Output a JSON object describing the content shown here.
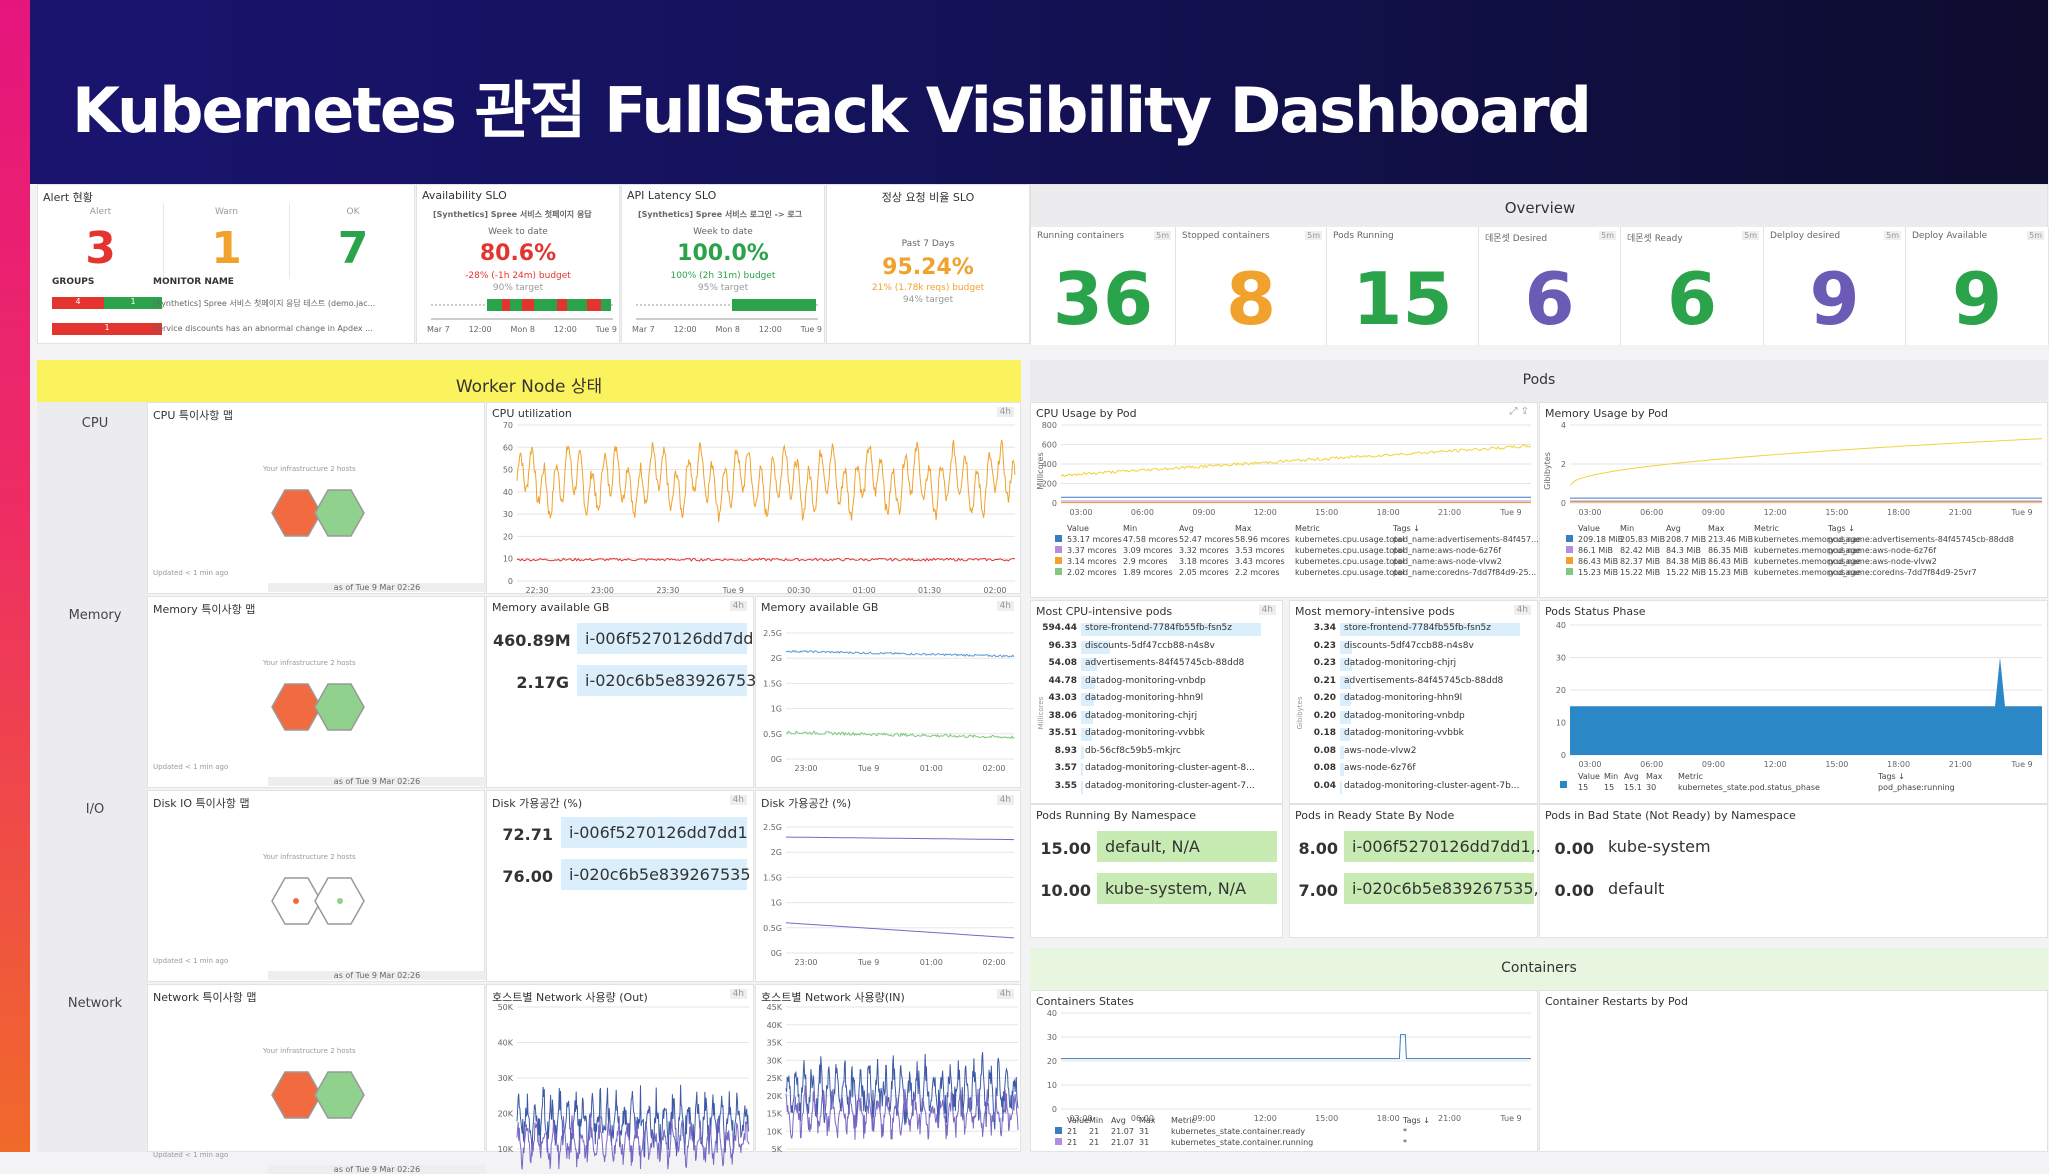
{
  "title": "Kubernetes 관점 FullStack Visibility Dashboard",
  "alert": {
    "title": "Alert 현황",
    "alert_label": "Alert",
    "warn_label": "Warn",
    "ok_label": "OK",
    "alert": "3",
    "warn": "1",
    "ok": "7",
    "groups_label": "GROUPS",
    "monitor_label": "MONITOR NAME",
    "g1a": "4",
    "g1b": "1",
    "g2": "1",
    "m1": "[Synthetics] Spree 서비스 첫페이지 응답 테스트 (demo.jac...",
    "m2": "Service discounts has an abnormal change in Apdex ..."
  },
  "slo1": {
    "title": "Availability SLO",
    "name": "[Synthetics] Spree 서비스 첫페이지 응답",
    "period": "Week to date",
    "value": "80.6%",
    "budget": "-28% (-1h 24m) budget",
    "target": "90% target",
    "ticks": [
      "Mar 7",
      "12:00",
      "Mon 8",
      "12:00",
      "Tue 9"
    ]
  },
  "slo2": {
    "title": "API Latency SLO",
    "name": "[Synthetics] Spree 서비스 로그인 -> 로그",
    "period": "Week to date",
    "value": "100.0%",
    "budget": "100% (2h 31m) budget",
    "target": "95% target",
    "ticks": [
      "Mar 7",
      "12:00",
      "Mon 8",
      "12:00",
      "Tue 9"
    ]
  },
  "slo3": {
    "title": "정상 요청 비율 SLO",
    "period": "Past 7 Days",
    "value": "95.24%",
    "budget": "21% (1.78k reqs) budget",
    "target": "94% target"
  },
  "overview": {
    "title": "Overview",
    "tiles": [
      {
        "label": "Running containers",
        "badge": "5m",
        "value": "36",
        "color": "#2aa34a"
      },
      {
        "label": "Stopped containers",
        "badge": "5m",
        "value": "8",
        "color": "#f0a22c"
      },
      {
        "label": "Pods Running",
        "badge": "",
        "value": "15",
        "color": "#2aa34a"
      },
      {
        "label": "데몬셋 Desired",
        "badge": "5m",
        "value": "6",
        "color": "#6b5bb5"
      },
      {
        "label": "데몬셋 Ready",
        "badge": "5m",
        "value": "6",
        "color": "#2aa34a"
      },
      {
        "label": "Delploy desired",
        "badge": "5m",
        "value": "9",
        "color": "#6b5bb5"
      },
      {
        "label": "Deploy Available",
        "badge": "5m",
        "value": "9",
        "color": "#2aa34a"
      }
    ]
  },
  "worker": {
    "title": "Worker Node 상태",
    "rows": [
      "CPU",
      "Memory",
      "I/O",
      "Network"
    ],
    "maps": [
      "CPU 특이사항 맵",
      "Memory 특이사항 맵",
      "Disk IO 특이사항 맵",
      "Network 특이사항 맵"
    ],
    "infra": "Your infrastructure",
    "hosts": "2 hosts",
    "updated": "Updated < 1 min ago",
    "asof": "as of Tue 9 Mar 02:26",
    "cpu_title": "CPU utilization",
    "badge": "4h",
    "cpu_y": [
      "70",
      "60",
      "50",
      "40",
      "30",
      "20",
      "10",
      "0"
    ],
    "cpu_x": [
      "22:30",
      "23:00",
      "23:30",
      "Tue 9",
      "00:30",
      "01:00",
      "01:30",
      "02:00"
    ],
    "mem_title": "Memory available GB",
    "mem_rows": [
      {
        "v": "460.89M",
        "l": "i-006f5270126dd7dd1"
      },
      {
        "v": "2.17G",
        "l": "i-020c6b5e839267535"
      }
    ],
    "mem_chart": "Memory available GB",
    "mem_y": [
      "2.5G",
      "2G",
      "1.5G",
      "1G",
      "0.5G",
      "0G"
    ],
    "t_x": [
      "23:00",
      "Tue 9",
      "01:00",
      "02:00"
    ],
    "disk_title": "Disk 가용공간 (%)",
    "disk_rows": [
      {
        "v": "72.71",
        "l": "i-006f5270126dd7dd1"
      },
      {
        "v": "76.00",
        "l": "i-020c6b5e839267535"
      }
    ],
    "disk_chart": "Disk 가용공간 (%)",
    "net_out": "호스트별 Network 사용량 (Out)",
    "net_out_y": [
      "50K",
      "40K",
      "30K",
      "20K",
      "10K"
    ],
    "net_in": "호스트별 Network 사용량(IN)",
    "net_in_y": [
      "45K",
      "40K",
      "35K",
      "30K",
      "25K",
      "20K",
      "15K",
      "10K",
      "5K"
    ]
  },
  "pods": {
    "title": "Pods",
    "cpu_title": "CPU Usage by Pod",
    "cpu_unit": "Millicores",
    "cpu_y": [
      "800",
      "600",
      "400",
      "200",
      "0"
    ],
    "x": [
      "03:00",
      "06:00",
      "09:00",
      "12:00",
      "15:00",
      "18:00",
      "21:00",
      "Tue 9"
    ],
    "cpu_tbl_h": [
      "Value",
      "Min",
      "Avg",
      "Max",
      "Metric",
      "Tags ↓"
    ],
    "cpu_tbl": [
      [
        "53.17 mcores",
        "47.58 mcores",
        "52.47 mcores",
        "58.96 mcores",
        "kubernetes.cpu.usage.total",
        "pod_name:advertisements-84f457..."
      ],
      [
        "3.37 mcores",
        "3.09 mcores",
        "3.32 mcores",
        "3.53 mcores",
        "kubernetes.cpu.usage.total",
        "pod_name:aws-node-6z76f"
      ],
      [
        "3.14 mcores",
        "2.9 mcores",
        "3.18 mcores",
        "3.43 mcores",
        "kubernetes.cpu.usage.total",
        "pod_name:aws-node-vlvw2"
      ],
      [
        "2.02 mcores",
        "1.89 mcores",
        "2.05 mcores",
        "2.2 mcores",
        "kubernetes.cpu.usage.total",
        "pod_name:coredns-7dd7f84d9-25..."
      ]
    ],
    "mem_title": "Memory Usage by Pod",
    "mem_unit": "Gibibytes",
    "mem_y": [
      "4",
      "2",
      "0"
    ],
    "mem_tbl_h": [
      "Value",
      "Min",
      "Avg",
      "Max",
      "Metric",
      "Tags ↓"
    ],
    "mem_tbl": [
      [
        "209.18 MiB",
        "205.83 MiB",
        "208.7 MiB",
        "213.46 MiB",
        "kubernetes.memory.usage",
        "pod_name:advertisements-84f45745cb-88dd8"
      ],
      [
        "86.1 MiB",
        "82.42 MiB",
        "84.3 MiB",
        "86.35 MiB",
        "kubernetes.memory.usage",
        "pod_name:aws-node-6z76f"
      ],
      [
        "86.43 MiB",
        "82.37 MiB",
        "84.38 MiB",
        "86.43 MiB",
        "kubernetes.memory.usage",
        "pod_name:aws-node-vlvw2"
      ],
      [
        "15.23 MiB",
        "15.22 MiB",
        "15.22 MiB",
        "15.23 MiB",
        "kubernetes.memory.usage",
        "pod_name:coredns-7dd7f84d9-25vr7"
      ]
    ],
    "top_cpu_title": "Most CPU-intensive pods",
    "top_cpu_unit": "Millicores",
    "badge": "4h",
    "top_cpu": [
      [
        "594.44",
        "store-frontend-7784fb55fb-fsn5z"
      ],
      [
        "96.33",
        "discounts-5df47ccb88-n4s8v"
      ],
      [
        "54.08",
        "advertisements-84f45745cb-88dd8"
      ],
      [
        "44.78",
        "datadog-monitoring-vnbdp"
      ],
      [
        "43.03",
        "datadog-monitoring-hhn9l"
      ],
      [
        "38.06",
        "datadog-monitoring-chjrj"
      ],
      [
        "35.51",
        "datadog-monitoring-vvbbk"
      ],
      [
        "8.93",
        "db-56cf8c59b5-mkjrc"
      ],
      [
        "3.57",
        "datadog-monitoring-cluster-agent-8..."
      ],
      [
        "3.55",
        "datadog-monitoring-cluster-agent-7..."
      ]
    ],
    "top_mem_title": "Most memory-intensive pods",
    "top_mem_unit": "Gibibytes",
    "top_mem": [
      [
        "3.34",
        "store-frontend-7784fb55fb-fsn5z"
      ],
      [
        "0.23",
        "discounts-5df47ccb88-n4s8v"
      ],
      [
        "0.23",
        "datadog-monitoring-chjrj"
      ],
      [
        "0.21",
        "advertisements-84f45745cb-88dd8"
      ],
      [
        "0.20",
        "datadog-monitoring-hhn9l"
      ],
      [
        "0.20",
        "datadog-monitoring-vnbdp"
      ],
      [
        "0.18",
        "datadog-monitoring-vvbbk"
      ],
      [
        "0.08",
        "aws-node-vlvw2"
      ],
      [
        "0.08",
        "aws-node-6z76f"
      ],
      [
        "0.04",
        "datadog-monitoring-cluster-agent-7b..."
      ]
    ],
    "status_title": "Pods Status Phase",
    "status_y": [
      "40",
      "30",
      "20",
      "10",
      "0"
    ],
    "status_tbl_h": [
      "Value",
      "Min",
      "Avg",
      "Max",
      "Metric",
      "Tags ↓"
    ],
    "status_tbl": [
      "15",
      "15",
      "15.1",
      "30",
      "kubernetes_state.pod.status_phase",
      "pod_phase:running"
    ],
    "ns_title": "Pods Running By Namespace",
    "ns": [
      {
        "v": "15.00",
        "l": "default, N/A"
      },
      {
        "v": "10.00",
        "l": "kube-system, N/A"
      }
    ],
    "node_title": "Pods in Ready State By Node",
    "node": [
      {
        "v": "8.00",
        "l": "i-006f5270126dd7dd1,..."
      },
      {
        "v": "7.00",
        "l": "i-020c6b5e839267535, ..."
      }
    ],
    "bad_title": "Pods in Bad State (Not Ready) by Namespace",
    "bad": [
      {
        "v": "0.00",
        "l": "kube-system"
      },
      {
        "v": "0.00",
        "l": "default"
      }
    ]
  },
  "containers": {
    "title": "Containers",
    "states_title": "Containers States",
    "restarts_title": "Container Restarts by Pod",
    "y": [
      "40",
      "30",
      "20",
      "10",
      "0"
    ],
    "tbl_h": [
      "Value",
      "Min",
      "Avg",
      "Max",
      "Metric",
      "Tags ↓"
    ],
    "tbl": [
      [
        "21",
        "21",
        "21.07",
        "31",
        "kubernetes_state.container.ready",
        "*"
      ],
      [
        "21",
        "21",
        "21.07",
        "31",
        "kubernetes_state.container.running",
        "*"
      ]
    ]
  }
}
